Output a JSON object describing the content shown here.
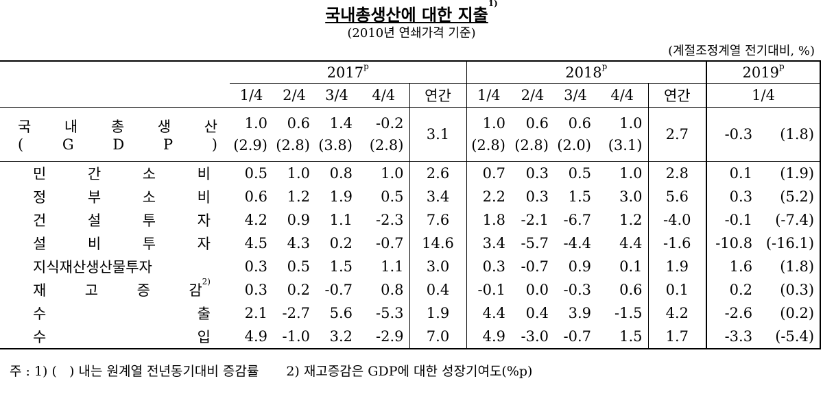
{
  "title": "국내총생산에 대한 지출",
  "title_note": "1)",
  "subtitle": "(2010년 연쇄가격 기준)",
  "unit": "(계절조정계열 전기대비, %)",
  "years": [
    {
      "label": "2017",
      "note": "p"
    },
    {
      "label": "2018",
      "note": "p"
    },
    {
      "label": "2019",
      "note": "p"
    }
  ],
  "periods": [
    "1/4",
    "2/4",
    "3/4",
    "4/4",
    "연간",
    "1/4",
    "2/4",
    "3/4",
    "4/4",
    "연간",
    "1/4"
  ],
  "rows": [
    {
      "label": [
        "국 내 총 생 산",
        "( G D P )"
      ],
      "cells": [
        [
          "1.0",
          "(2.9)"
        ],
        [
          "0.6",
          "(2.8)"
        ],
        [
          "1.4",
          "(3.8)"
        ],
        [
          "-0.2",
          "(2.8)"
        ],
        "3.1",
        [
          "1.0",
          "(2.8)"
        ],
        [
          "0.6",
          "(2.8)"
        ],
        [
          "0.6",
          "(2.0)"
        ],
        [
          "1.0",
          "(3.1)"
        ],
        "2.7",
        "-0.3",
        "(1.8)"
      ]
    },
    {
      "label": "민 간 소 비",
      "cells": [
        "0.5",
        "1.0",
        "0.8",
        "1.0",
        "2.6",
        "0.7",
        "0.3",
        "0.5",
        "1.0",
        "2.8",
        "0.1",
        "(1.9)"
      ]
    },
    {
      "label": "정 부 소 비",
      "cells": [
        "0.6",
        "1.2",
        "1.9",
        "0.5",
        "3.4",
        "2.2",
        "0.3",
        "1.5",
        "3.0",
        "5.6",
        "0.3",
        "(5.2)"
      ]
    },
    {
      "label": "건 설 투 자",
      "cells": [
        "4.2",
        "0.9",
        "1.1",
        "-2.3",
        "7.6",
        "1.8",
        "-2.1",
        "-6.7",
        "1.2",
        "-4.0",
        "-0.1",
        "(-7.4)"
      ]
    },
    {
      "label": "설 비 투 자",
      "cells": [
        "4.5",
        "4.3",
        "0.2",
        "-0.7",
        "14.6",
        "3.4",
        "-5.7",
        "-4.4",
        "4.4",
        "-1.6",
        "-10.8",
        "(-16.1)"
      ]
    },
    {
      "label": "지식재산생산물투자",
      "cells": [
        "0.3",
        "0.5",
        "1.5",
        "1.1",
        "3.0",
        "0.3",
        "-0.7",
        "0.9",
        "0.1",
        "1.9",
        "1.6",
        "(1.8)"
      ]
    },
    {
      "label": "재 고 증 감",
      "note": "2)",
      "cells": [
        "0.3",
        "0.2",
        "-0.7",
        "0.8",
        "0.4",
        "-0.1",
        "0.0",
        "-0.3",
        "0.6",
        "0.1",
        "0.2",
        "(0.3)"
      ]
    },
    {
      "label": "수 출",
      "cells": [
        "2.1",
        "-2.7",
        "5.6",
        "-5.3",
        "1.9",
        "4.4",
        "0.4",
        "3.9",
        "-1.5",
        "4.2",
        "-2.6",
        "(0.2)"
      ]
    },
    {
      "label": "수 입",
      "cells": [
        "4.9",
        "-1.0",
        "3.2",
        "-2.9",
        "7.0",
        "4.9",
        "-3.0",
        "-0.7",
        "1.5",
        "1.7",
        "-3.3",
        "(-5.4)"
      ]
    }
  ],
  "footnotes": [
    "주 : 1) (   ) 내는 원계열 전년동기대비 증감률",
    "2) 재고증감은 GDP에 대한 성장기여도(%p)"
  ]
}
